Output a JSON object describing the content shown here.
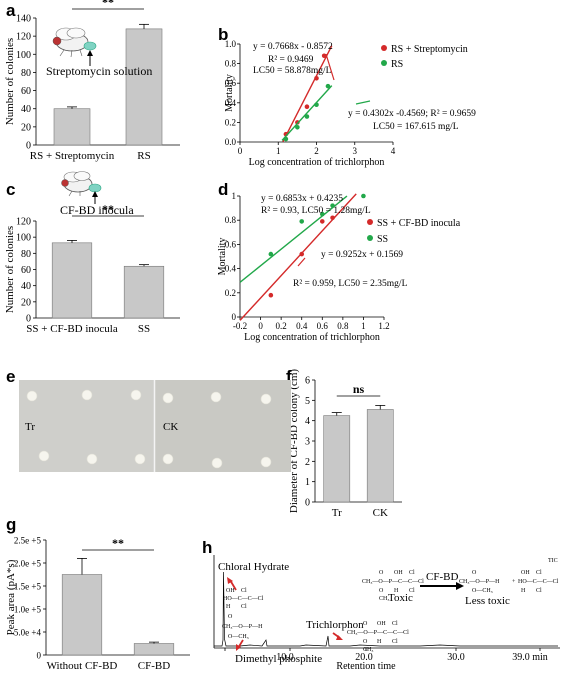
{
  "panels": {
    "a": {
      "letter": "a",
      "inset_label": "Streptomycin solution"
    },
    "b": {
      "letter": "b"
    },
    "c": {
      "letter": "c",
      "inset_label": "CF-BD inocula"
    },
    "d": {
      "letter": "d"
    },
    "e": {
      "letter": "e",
      "plate_left_label": "Tr",
      "plate_right_label": "CK"
    },
    "f": {
      "letter": "f"
    },
    "g": {
      "letter": "g"
    },
    "h": {
      "letter": "h",
      "chloral_label": "Chloral Hydrate",
      "dimethyl_label": "Dimethyl phosphite",
      "trichlorphon_label": "Trichlorphon",
      "toxic_label": "Toxic",
      "less_toxic_label": "Less toxic",
      "arrow_label": "CF-BD",
      "tic_label": "TIC",
      "xlabel": "Retention time",
      "ticks": [
        "10.0",
        "20.0",
        "30.0",
        "39.0 min"
      ]
    }
  },
  "colors": {
    "bar": "#c8c8c8",
    "red": "#d42a2a",
    "green": "#22a84a",
    "axis": "#000000"
  },
  "chart_data": [
    {
      "id": "a",
      "type": "bar",
      "ylabel": "Number of colonies",
      "categories": [
        "RS + Streptomycin",
        "RS"
      ],
      "values": [
        40,
        128
      ],
      "errors": [
        2,
        5
      ],
      "ylim": [
        0,
        140
      ],
      "yticks": [
        "0",
        "20",
        "40",
        "60",
        "80",
        "100",
        "120",
        "140"
      ],
      "significance": "**"
    },
    {
      "id": "b",
      "type": "scatter",
      "xlabel": "Log concentration of trichlorphon",
      "ylabel": "Mortality",
      "xlim": [
        0,
        4
      ],
      "ylim": [
        0,
        1
      ],
      "xticks": [
        "0",
        "1",
        "2",
        "3",
        "4"
      ],
      "yticks": [
        "0.0",
        "0.2",
        "0.4",
        "0.6",
        "0.8",
        "1.0"
      ],
      "legend": [
        "RS + Streptomycin",
        "RS"
      ],
      "legend_position": "top-right",
      "series": [
        {
          "name": "RS + Streptomycin",
          "color": "red",
          "points": [
            [
              1.2,
              0.08
            ],
            [
              1.5,
              0.2
            ],
            [
              1.75,
              0.36
            ],
            [
              2.0,
              0.65
            ],
            [
              2.2,
              0.88
            ]
          ],
          "fit": {
            "slope": 0.7668,
            "intercept": -0.8572,
            "x_range": [
              1.12,
              2.4
            ]
          }
        },
        {
          "name": "RS",
          "color": "green",
          "points": [
            [
              1.2,
              0.03
            ],
            [
              1.5,
              0.15
            ],
            [
              1.75,
              0.26
            ],
            [
              2.0,
              0.38
            ],
            [
              2.3,
              0.57
            ]
          ],
          "fit": {
            "slope": 0.4302,
            "intercept": -0.4569,
            "x_range": [
              1.1,
              2.4
            ]
          }
        }
      ],
      "annotations": [
        "y = 0.7668x - 0.8572",
        "R² = 0.9469",
        "LC50 = 58.878mg/L",
        "y = 0.4302x -0.4569; R² = 0.9659",
        "LC50 = 167.615 mg/L"
      ]
    },
    {
      "id": "c",
      "type": "bar",
      "ylabel": "Number of colonies",
      "categories": [
        "SS + CF-BD inocula",
        "SS"
      ],
      "values": [
        93,
        64
      ],
      "errors": [
        3,
        2
      ],
      "ylim": [
        0,
        120
      ],
      "yticks": [
        "0",
        "20",
        "40",
        "60",
        "80",
        "100",
        "120"
      ],
      "significance": "**"
    },
    {
      "id": "d",
      "type": "scatter",
      "xlabel": "Log concentration of trichlorphon",
      "ylabel": "Mortality",
      "xlim": [
        -0.2,
        1.2
      ],
      "ylim": [
        0,
        1
      ],
      "xticks": [
        "-0.2",
        "0",
        "0.2",
        "0.4",
        "0.6",
        "0.8",
        "1",
        "1.2"
      ],
      "yticks": [
        "0",
        "0.2",
        "0.4",
        "0.6",
        "0.8",
        "1"
      ],
      "legend": [
        "SS + CF-BD inocula",
        "SS"
      ],
      "legend_position": "right",
      "series": [
        {
          "name": "SS + CF-BD inocula",
          "color": "red",
          "points": [
            [
              0.1,
              0.18
            ],
            [
              0.4,
              0.52
            ],
            [
              0.6,
              0.79
            ],
            [
              0.7,
              0.82
            ]
          ],
          "fit": {
            "slope": 0.9252,
            "intercept": 0.1569,
            "x_range": [
              -0.2,
              0.93
            ]
          }
        },
        {
          "name": "SS",
          "color": "green",
          "points": [
            [
              0.1,
              0.52
            ],
            [
              0.4,
              0.79
            ],
            [
              0.6,
              0.85
            ],
            [
              0.7,
              0.92
            ],
            [
              1.0,
              1.0
            ]
          ],
          "fit": {
            "slope": 0.6853,
            "intercept": 0.4235,
            "x_range": [
              -0.2,
              0.84
            ]
          }
        }
      ],
      "annotations": [
        "y = 0.6853x + 0.4235",
        "R² = 0.93, LC50 = 1.28mg/L",
        "y = 0.9252x + 0.1569",
        "R² = 0.959, LC50 = 2.35mg/L"
      ]
    },
    {
      "id": "f",
      "type": "bar",
      "ylabel": "Diameter of CF-BD colony (cm)",
      "categories": [
        "Tr",
        "CK"
      ],
      "values": [
        4.25,
        4.55
      ],
      "errors": [
        0.15,
        0.2
      ],
      "ylim": [
        0,
        6
      ],
      "yticks": [
        "0",
        "1",
        "2",
        "3",
        "4",
        "5",
        "6"
      ],
      "significance": "ns"
    },
    {
      "id": "g",
      "type": "bar",
      "ylabel": "Peak area (pA*s)",
      "categories": [
        "Without CF-BD",
        "CF-BD"
      ],
      "values": [
        1.75,
        0.25
      ],
      "errors": [
        0.35,
        0.03
      ],
      "ylim": [
        0,
        2.5
      ],
      "yticks": [
        "0",
        "5.0e +4",
        "1.0e +5",
        "1.5e +5",
        "2.0e +5",
        "2.5e +5"
      ],
      "significance": "**"
    }
  ]
}
